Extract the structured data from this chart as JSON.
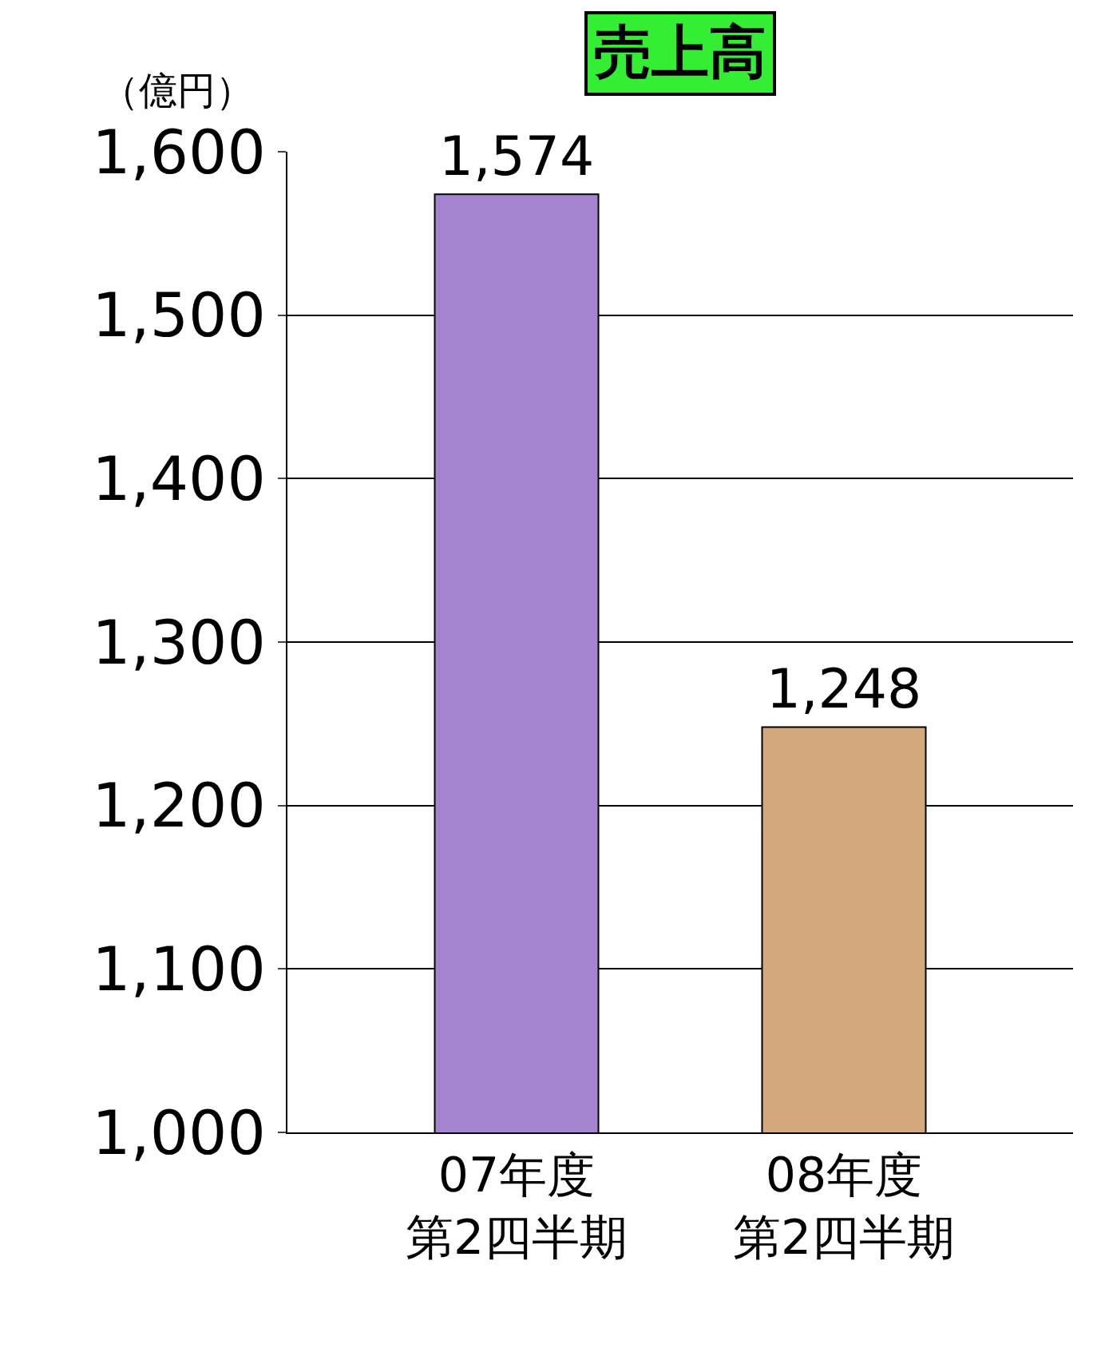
{
  "chart_data": {
    "type": "bar",
    "title": "売上高",
    "ylabel": "（億円）",
    "categories": [
      "07年度第2四半期",
      "08年度第2四半期"
    ],
    "values": [
      1574,
      1248
    ],
    "colors": [
      "#a584cf",
      "#d2a87c"
    ],
    "value_labels": [
      "1,574",
      "1,248"
    ],
    "ylim": [
      1000,
      1600
    ],
    "yticks": [
      {
        "value": 1000,
        "label": "1,000"
      },
      {
        "value": 1100,
        "label": "1,100"
      },
      {
        "value": 1200,
        "label": "1,200"
      },
      {
        "value": 1300,
        "label": "1,300"
      },
      {
        "value": 1400,
        "label": "1,400"
      },
      {
        "value": 1500,
        "label": "1,500"
      },
      {
        "value": 1600,
        "label": "1,600"
      }
    ],
    "grid": "y",
    "legend": false
  }
}
